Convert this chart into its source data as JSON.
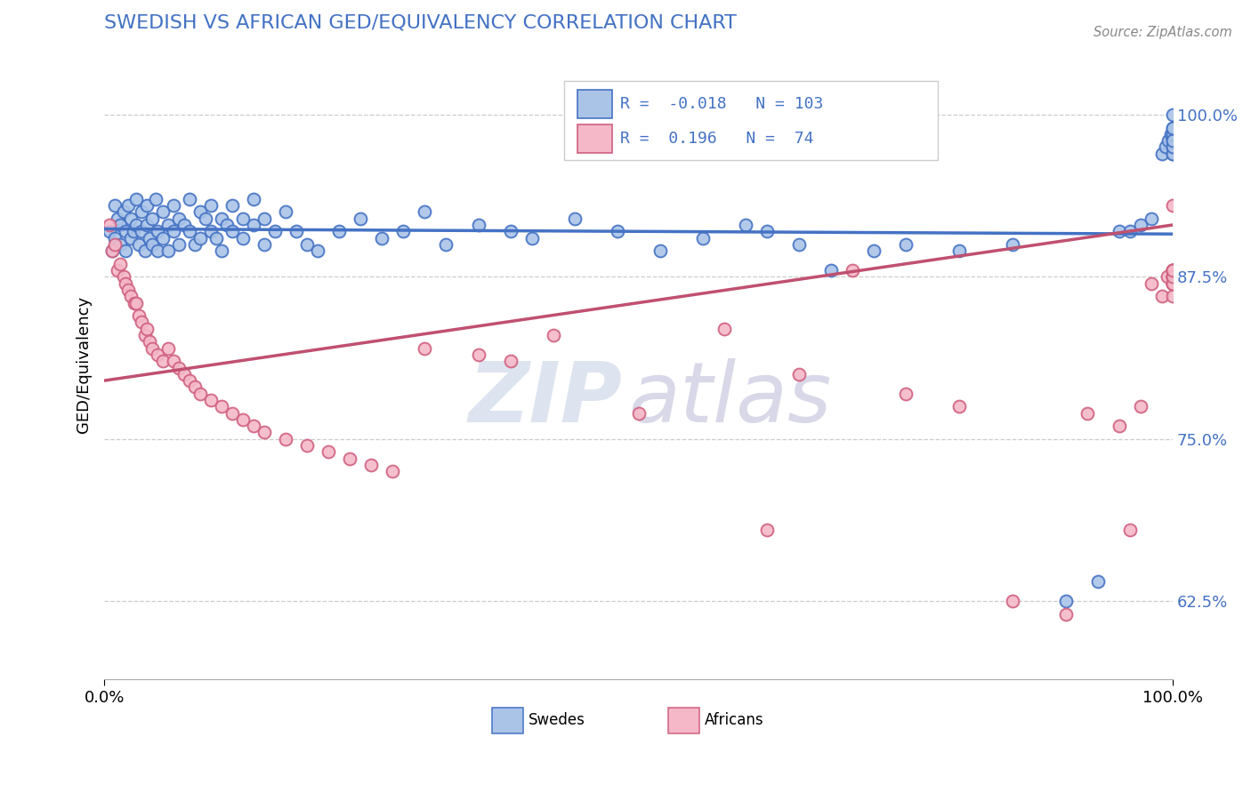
{
  "title": "SWEDISH VS AFRICAN GED/EQUIVALENCY CORRELATION CHART",
  "source": "Source: ZipAtlas.com",
  "ylabel": "GED/Equivalency",
  "ytick_labels": [
    "62.5%",
    "75.0%",
    "87.5%",
    "100.0%"
  ],
  "ytick_values": [
    0.625,
    0.75,
    0.875,
    1.0
  ],
  "xtick_labels": [
    "0.0%",
    "100.0%"
  ],
  "xtick_values": [
    0.0,
    1.0
  ],
  "xlim": [
    0.0,
    1.0
  ],
  "ylim": [
    0.565,
    1.05
  ],
  "swedes_R": -0.018,
  "swedes_N": 103,
  "africans_R": 0.196,
  "africans_N": 74,
  "swede_fill": "#aac4e8",
  "swede_edge": "#4472c4",
  "african_fill": "#f4b8c8",
  "african_edge": "#d06080",
  "swede_line": "#4472c4",
  "african_line": "#c05070",
  "title_color": "#4472c4",
  "ytick_color": "#4472c4",
  "grid_color": "#cccccc",
  "source_color": "#888888",
  "legend_border": "#cccccc",
  "watermark_zip_color": "#dde4f0",
  "watermark_atlas_color": "#d8d8e8",
  "bottom_legend_swede_color": "#4472c4",
  "bottom_legend_african_color": "#d06080",
  "swedes_x": [
    0.005,
    0.007,
    0.01,
    0.01,
    0.012,
    0.015,
    0.015,
    0.018,
    0.02,
    0.02,
    0.022,
    0.025,
    0.025,
    0.027,
    0.03,
    0.03,
    0.032,
    0.035,
    0.035,
    0.038,
    0.04,
    0.04,
    0.042,
    0.045,
    0.045,
    0.048,
    0.05,
    0.05,
    0.055,
    0.055,
    0.06,
    0.06,
    0.065,
    0.065,
    0.07,
    0.07,
    0.075,
    0.08,
    0.08,
    0.085,
    0.09,
    0.09,
    0.095,
    0.1,
    0.1,
    0.105,
    0.11,
    0.11,
    0.115,
    0.12,
    0.12,
    0.13,
    0.13,
    0.14,
    0.14,
    0.15,
    0.15,
    0.16,
    0.17,
    0.18,
    0.19,
    0.2,
    0.22,
    0.24,
    0.26,
    0.28,
    0.3,
    0.32,
    0.35,
    0.38,
    0.4,
    0.44,
    0.48,
    0.52,
    0.56,
    0.6,
    0.62,
    0.65,
    0.68,
    0.72,
    0.75,
    0.8,
    0.85,
    0.9,
    0.93,
    0.95,
    0.96,
    0.97,
    0.98,
    0.99,
    0.993,
    0.996,
    0.998,
    1.0,
    1.0,
    1.0,
    1.0,
    1.0,
    1.0,
    1.0,
    1.0,
    1.0,
    1.0
  ],
  "swedes_y": [
    0.91,
    0.895,
    0.93,
    0.905,
    0.92,
    0.915,
    0.9,
    0.925,
    0.91,
    0.895,
    0.93,
    0.92,
    0.905,
    0.91,
    0.935,
    0.915,
    0.9,
    0.925,
    0.91,
    0.895,
    0.93,
    0.915,
    0.905,
    0.92,
    0.9,
    0.935,
    0.91,
    0.895,
    0.925,
    0.905,
    0.915,
    0.895,
    0.93,
    0.91,
    0.92,
    0.9,
    0.915,
    0.935,
    0.91,
    0.9,
    0.925,
    0.905,
    0.92,
    0.93,
    0.91,
    0.905,
    0.92,
    0.895,
    0.915,
    0.93,
    0.91,
    0.92,
    0.905,
    0.935,
    0.915,
    0.92,
    0.9,
    0.91,
    0.925,
    0.91,
    0.9,
    0.895,
    0.91,
    0.92,
    0.905,
    0.91,
    0.925,
    0.9,
    0.915,
    0.91,
    0.905,
    0.92,
    0.91,
    0.895,
    0.905,
    0.915,
    0.91,
    0.9,
    0.88,
    0.895,
    0.9,
    0.895,
    0.9,
    0.625,
    0.64,
    0.91,
    0.91,
    0.915,
    0.92,
    0.97,
    0.975,
    0.98,
    0.985,
    0.97,
    0.975,
    0.98,
    0.985,
    0.99,
    0.97,
    0.975,
    0.98,
    0.99,
    1.0
  ],
  "africans_x": [
    0.005,
    0.007,
    0.01,
    0.012,
    0.015,
    0.018,
    0.02,
    0.022,
    0.025,
    0.028,
    0.03,
    0.032,
    0.035,
    0.038,
    0.04,
    0.042,
    0.045,
    0.05,
    0.055,
    0.06,
    0.065,
    0.07,
    0.075,
    0.08,
    0.085,
    0.09,
    0.1,
    0.11,
    0.12,
    0.13,
    0.14,
    0.15,
    0.17,
    0.19,
    0.21,
    0.23,
    0.25,
    0.27,
    0.3,
    0.35,
    0.38,
    0.42,
    0.5,
    0.58,
    0.62,
    0.65,
    0.7,
    0.75,
    0.8,
    0.85,
    0.9,
    0.92,
    0.95,
    0.96,
    0.97,
    0.98,
    0.99,
    0.995,
    1.0,
    1.0,
    1.0,
    1.0,
    1.0,
    1.0,
    1.0,
    1.0,
    1.0,
    1.0,
    1.0,
    1.0,
    1.0,
    1.0,
    1.0,
    1.0
  ],
  "africans_y": [
    0.915,
    0.895,
    0.9,
    0.88,
    0.885,
    0.875,
    0.87,
    0.865,
    0.86,
    0.855,
    0.855,
    0.845,
    0.84,
    0.83,
    0.835,
    0.825,
    0.82,
    0.815,
    0.81,
    0.82,
    0.81,
    0.805,
    0.8,
    0.795,
    0.79,
    0.785,
    0.78,
    0.775,
    0.77,
    0.765,
    0.76,
    0.755,
    0.75,
    0.745,
    0.74,
    0.735,
    0.73,
    0.725,
    0.82,
    0.815,
    0.81,
    0.83,
    0.77,
    0.835,
    0.68,
    0.8,
    0.88,
    0.785,
    0.775,
    0.625,
    0.615,
    0.77,
    0.76,
    0.68,
    0.775,
    0.87,
    0.86,
    0.875,
    0.88,
    0.875,
    0.87,
    0.88,
    0.875,
    0.87,
    0.86,
    0.875,
    0.88,
    0.87,
    0.875,
    0.88,
    0.87,
    0.875,
    0.88,
    0.93
  ]
}
